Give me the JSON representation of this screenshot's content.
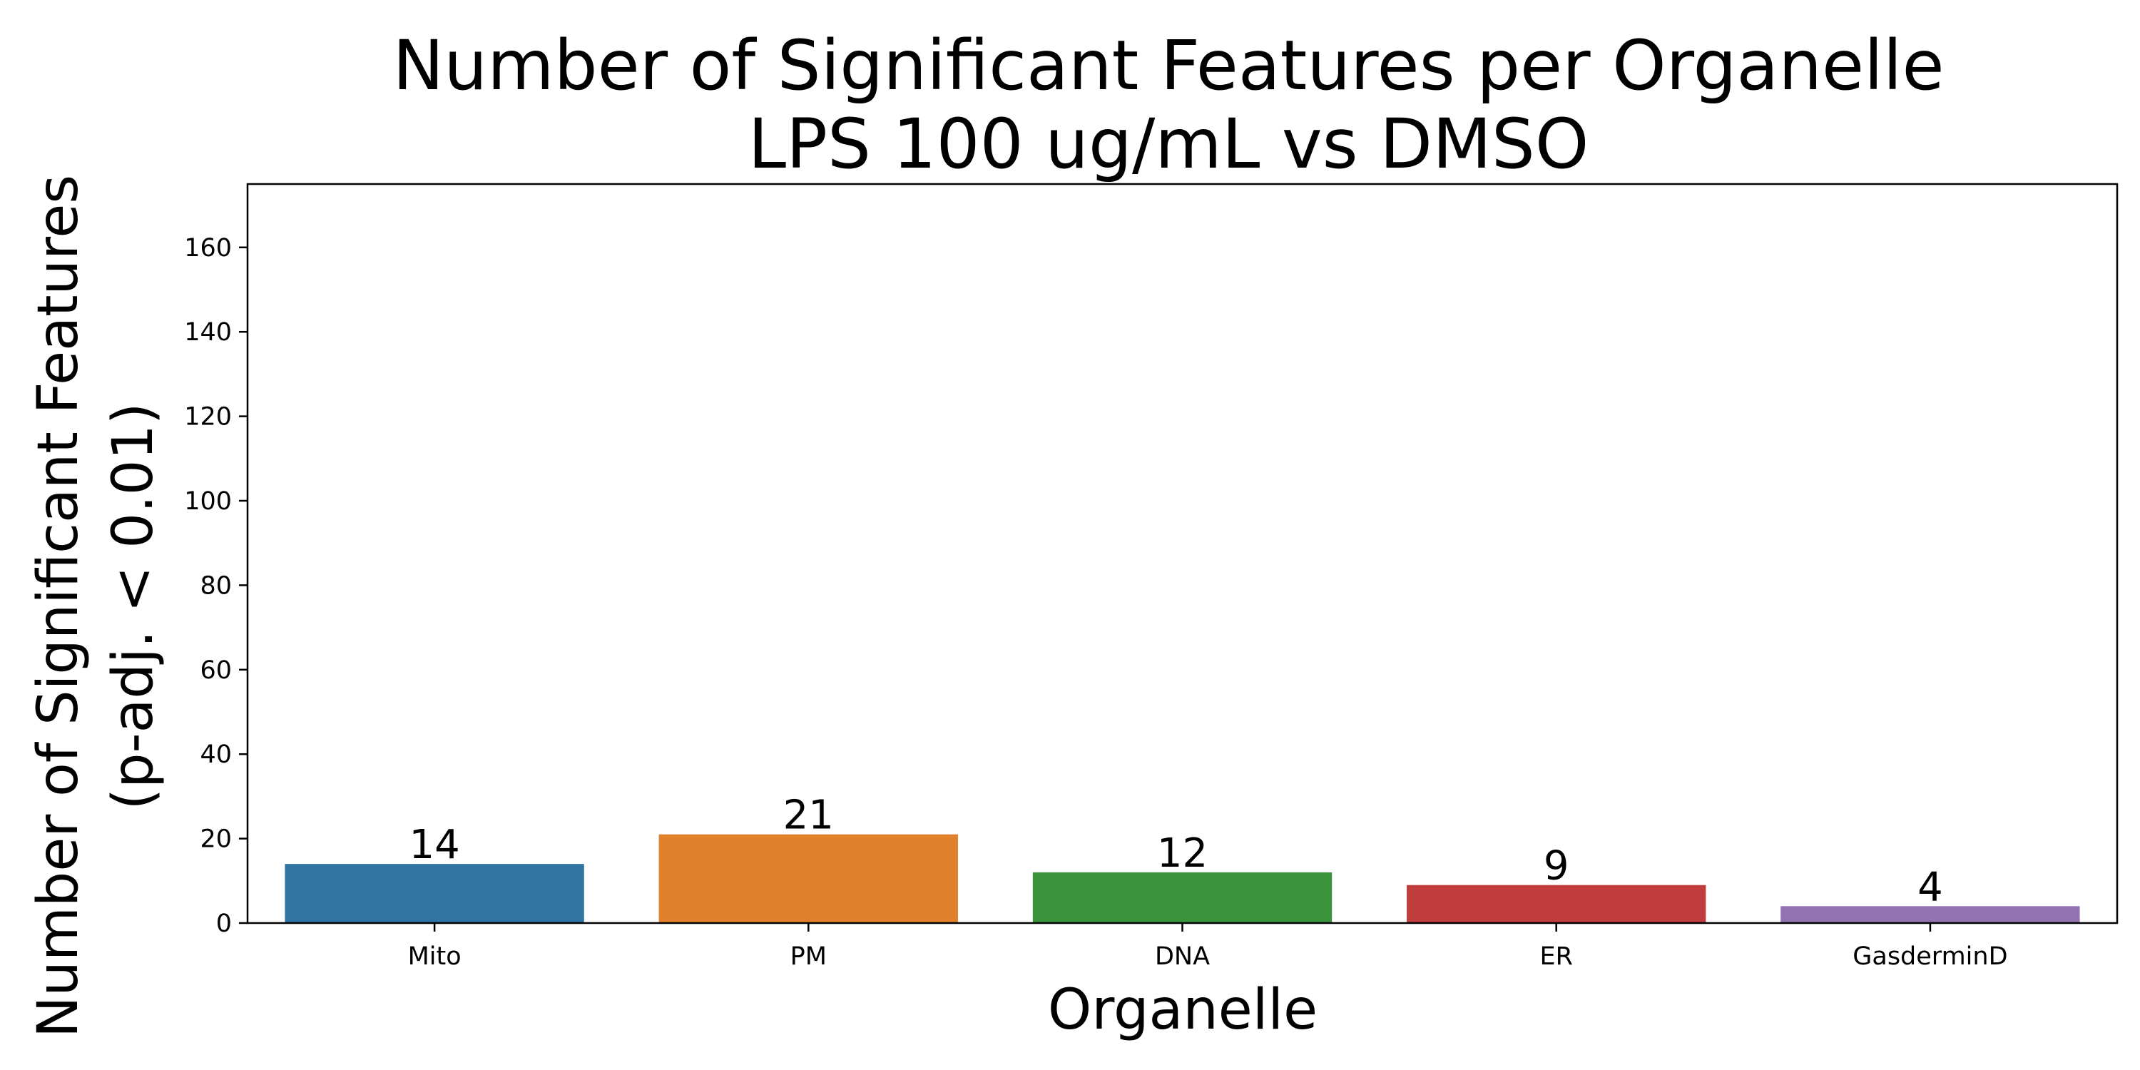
{
  "chart_data": {
    "type": "bar",
    "title": "Number of Significant Features per Organelle",
    "subtitle": "LPS 100 ug/mL vs DMSO",
    "xlabel": "Organelle",
    "ylabel": "Number of Significant Features",
    "ylabel_line2": "(p-adj. < 0.01)",
    "categories": [
      "Mito",
      "PM",
      "DNA",
      "ER",
      "GasderminD"
    ],
    "values": [
      14,
      21,
      12,
      9,
      4
    ],
    "data_labels": [
      "14",
      "21",
      "12",
      "9",
      "4"
    ],
    "colors": [
      "#3274a1",
      "#e1812c",
      "#3a923a",
      "#c03d3e",
      "#9372b2"
    ],
    "ylim": [
      0,
      175
    ],
    "yticks": [
      0,
      20,
      40,
      60,
      80,
      100,
      120,
      140,
      160
    ],
    "grid": false,
    "legend": "none"
  }
}
